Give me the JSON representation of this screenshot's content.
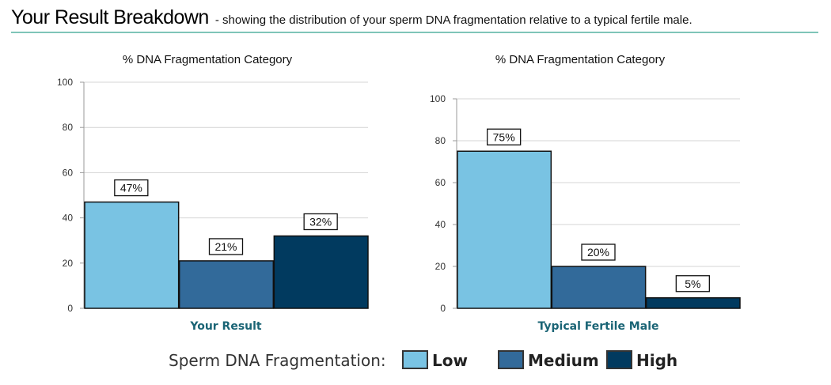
{
  "header": {
    "title": "Your Result Breakdown",
    "subtitle": "- showing the distribution of your sperm DNA fragmentation relative to a typical fertile male."
  },
  "colors": {
    "low": "#79c3e3",
    "medium": "#326a9a",
    "high": "#013a5f",
    "category_label": "#1a6475",
    "header_rule": "#7fc5b8"
  },
  "chart_data": [
    {
      "type": "bar",
      "title": "% DNA Fragmentation Category",
      "xlabel": "Your Result",
      "ylabel": "",
      "ylim": [
        0,
        100
      ],
      "yticks": [
        0,
        20,
        40,
        60,
        80,
        100
      ],
      "grid": true,
      "categories": [
        "Low",
        "Medium",
        "High"
      ],
      "values": [
        47,
        21,
        32
      ],
      "data_labels": [
        "47%",
        "21%",
        "32%"
      ]
    },
    {
      "type": "bar",
      "title": "% DNA Fragmentation Category",
      "xlabel": "Typical Fertile Male",
      "ylabel": "",
      "ylim": [
        0,
        100
      ],
      "yticks": [
        0,
        20,
        40,
        60,
        80,
        100
      ],
      "grid": true,
      "categories": [
        "Low",
        "Medium",
        "High"
      ],
      "values": [
        75,
        20,
        5
      ],
      "data_labels": [
        "75%",
        "20%",
        "5%"
      ]
    }
  ],
  "legend": {
    "title": "Sperm DNA Fragmentation:",
    "items": [
      {
        "label": "Low",
        "color": "#79c3e3"
      },
      {
        "label": "Medium",
        "color": "#326a9a"
      },
      {
        "label": "High",
        "color": "#013a5f"
      }
    ]
  }
}
